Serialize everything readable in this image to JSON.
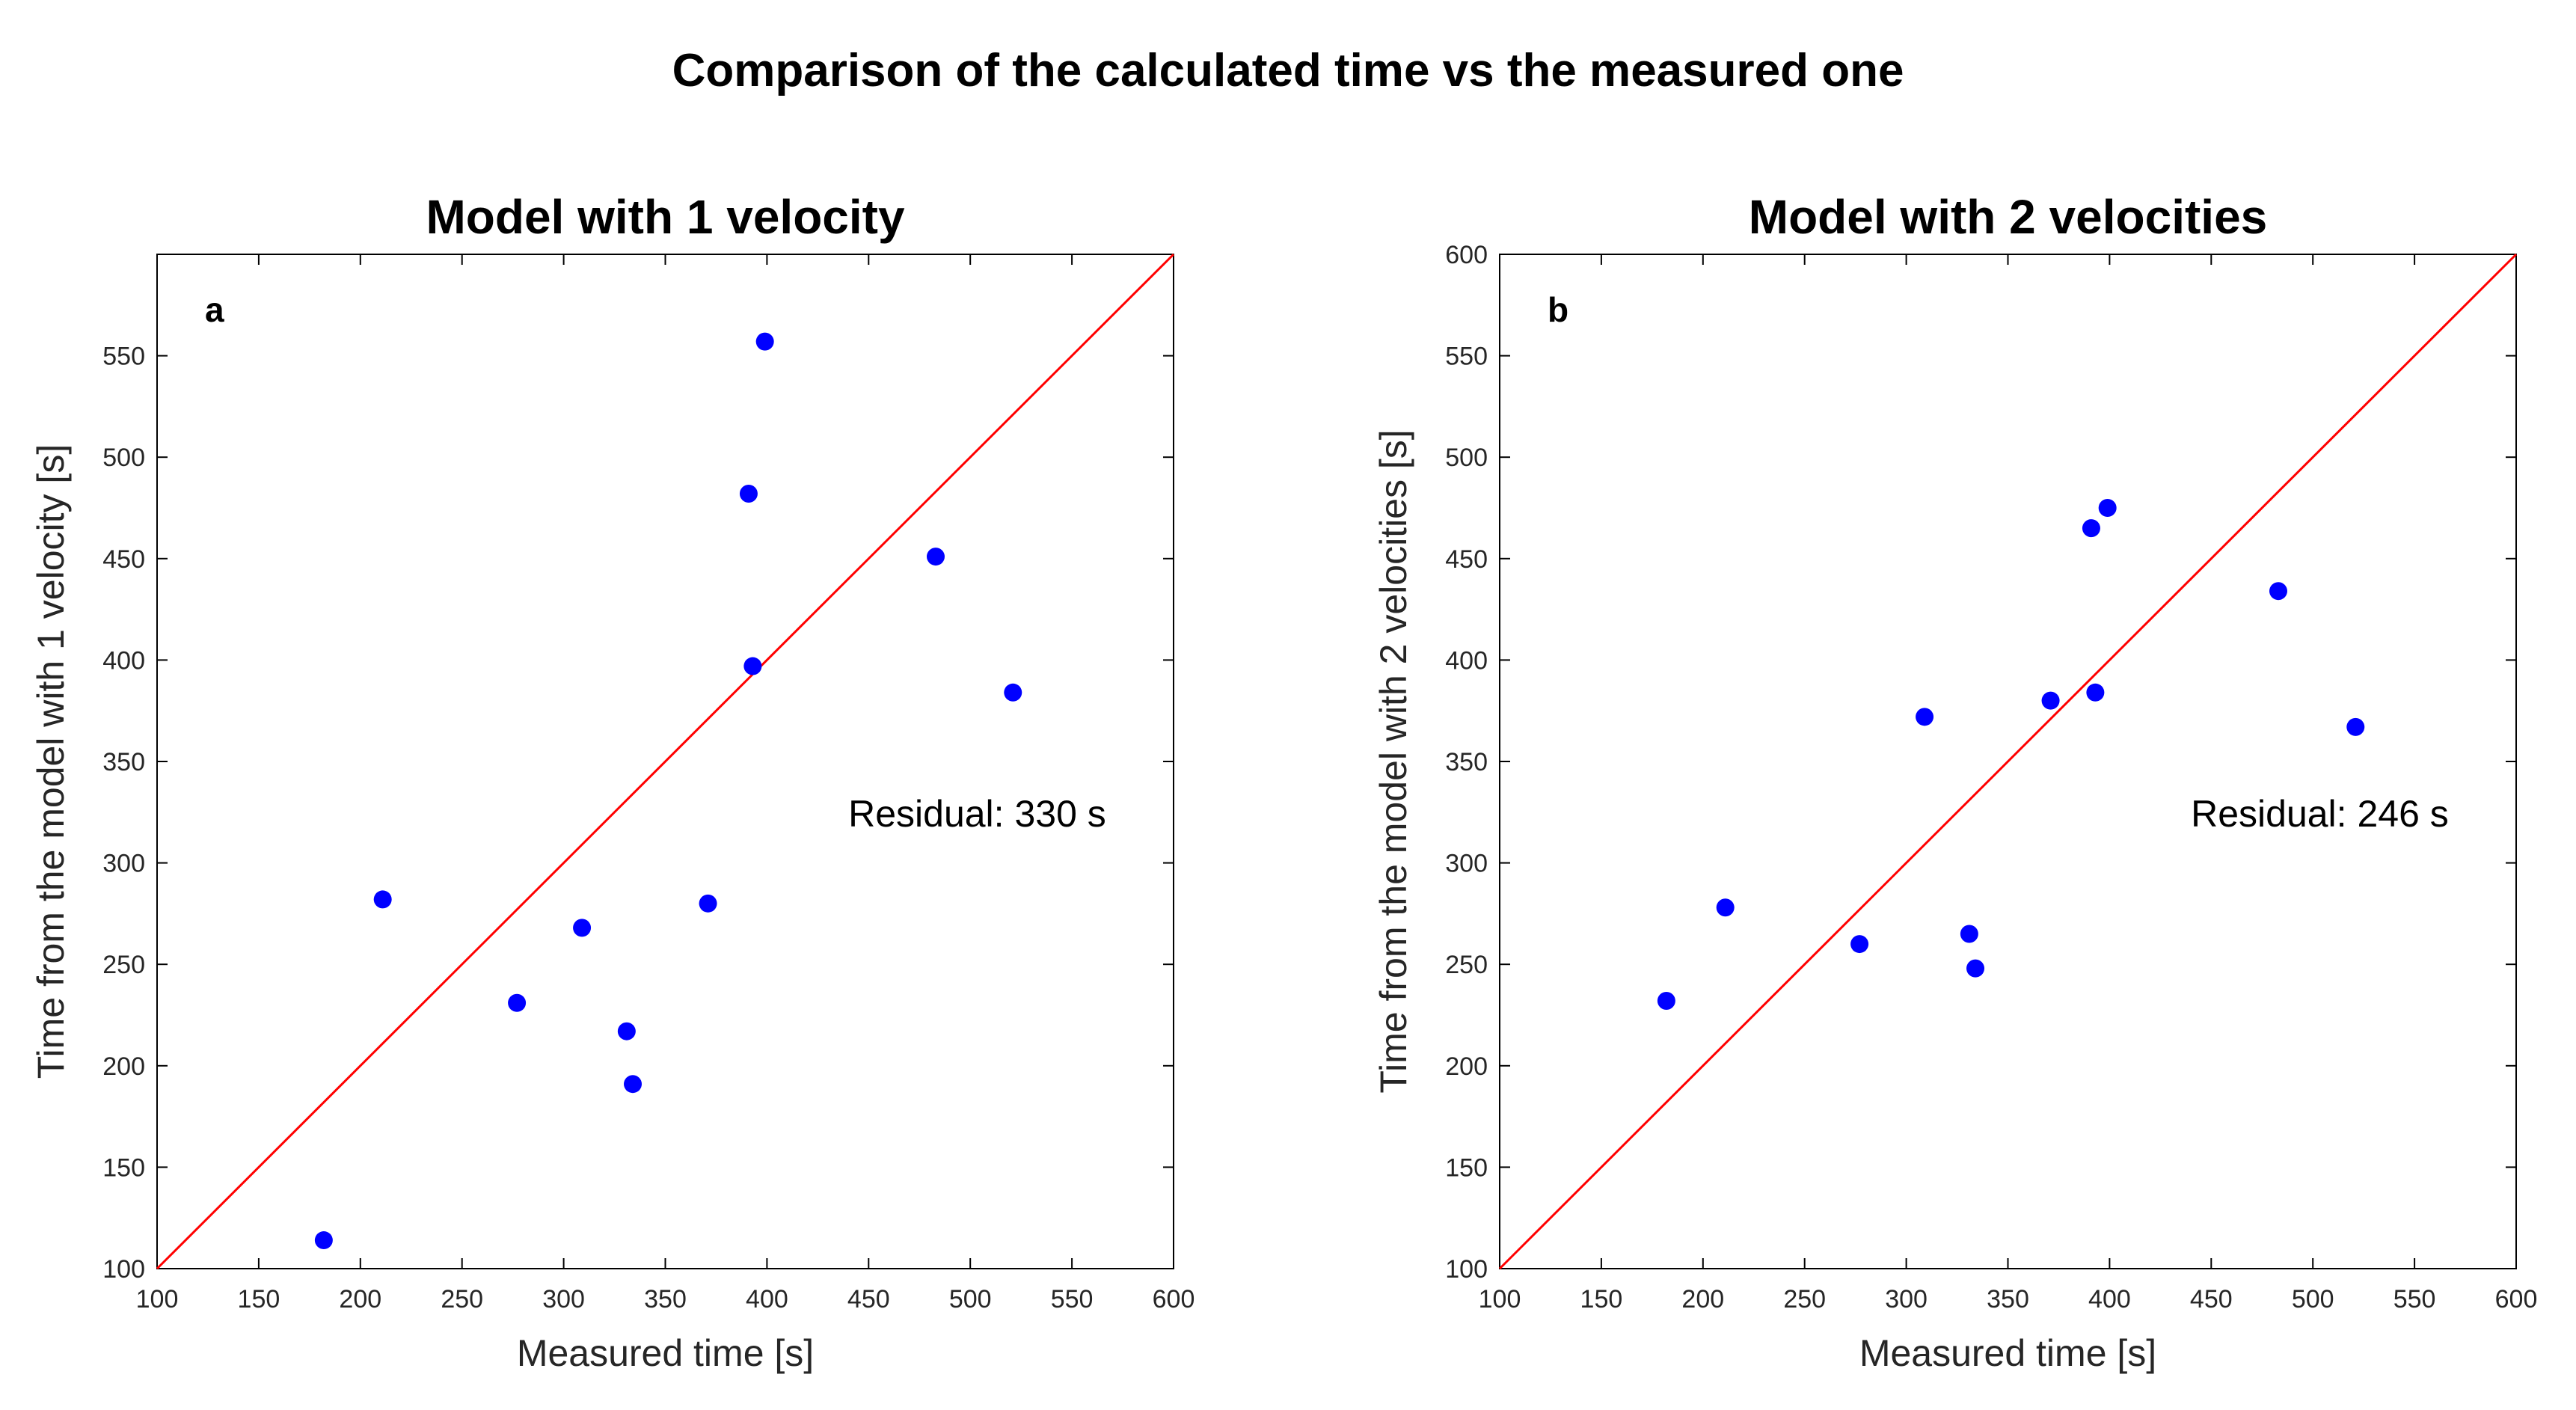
{
  "figure_title": "Comparison of the calculated time vs the measured one",
  "colors": {
    "points": "#0000ff",
    "reference_line": "#ff0000",
    "axes": "#000000",
    "background": "#ffffff"
  },
  "chart_data": [
    {
      "type": "scatter",
      "panel_label": "a",
      "title": "Model with 1 velocity",
      "xlabel": "Measured time [s]",
      "ylabel": "Time from the model with 1 velocity [s]",
      "xlim": [
        100,
        600
      ],
      "ylim": [
        100,
        600
      ],
      "xticks": [
        100,
        150,
        200,
        250,
        300,
        350,
        400,
        450,
        500,
        550,
        600
      ],
      "yticks": [
        100,
        150,
        200,
        250,
        300,
        350,
        400,
        450,
        500,
        550
      ],
      "annotation": "Residual: 330 s",
      "reference_line": {
        "x": [
          100,
          600
        ],
        "y": [
          100,
          600
        ]
      },
      "x": [
        182,
        211,
        277,
        309,
        331,
        334,
        371,
        391,
        393,
        399,
        483,
        521
      ],
      "y": [
        114,
        282,
        231,
        268,
        217,
        191,
        280,
        482,
        397,
        557,
        451,
        384
      ]
    },
    {
      "type": "scatter",
      "panel_label": "b",
      "title": "Model with 2 velocities",
      "xlabel": "Measured time [s]",
      "ylabel": "Time from the model with 2 velocities [s]",
      "xlim": [
        100,
        600
      ],
      "ylim": [
        100,
        600
      ],
      "xticks": [
        100,
        150,
        200,
        250,
        300,
        350,
        400,
        450,
        500,
        550,
        600
      ],
      "yticks": [
        100,
        150,
        200,
        250,
        300,
        350,
        400,
        450,
        500,
        550,
        600
      ],
      "annotation": "Residual: 246 s",
      "reference_line": {
        "x": [
          100,
          600
        ],
        "y": [
          100,
          600
        ]
      },
      "x": [
        182,
        211,
        277,
        309,
        331,
        334,
        371,
        391,
        393,
        399,
        483,
        521
      ],
      "y": [
        232,
        278,
        260,
        372,
        265,
        248,
        380,
        465,
        384,
        475,
        434,
        367
      ]
    }
  ]
}
